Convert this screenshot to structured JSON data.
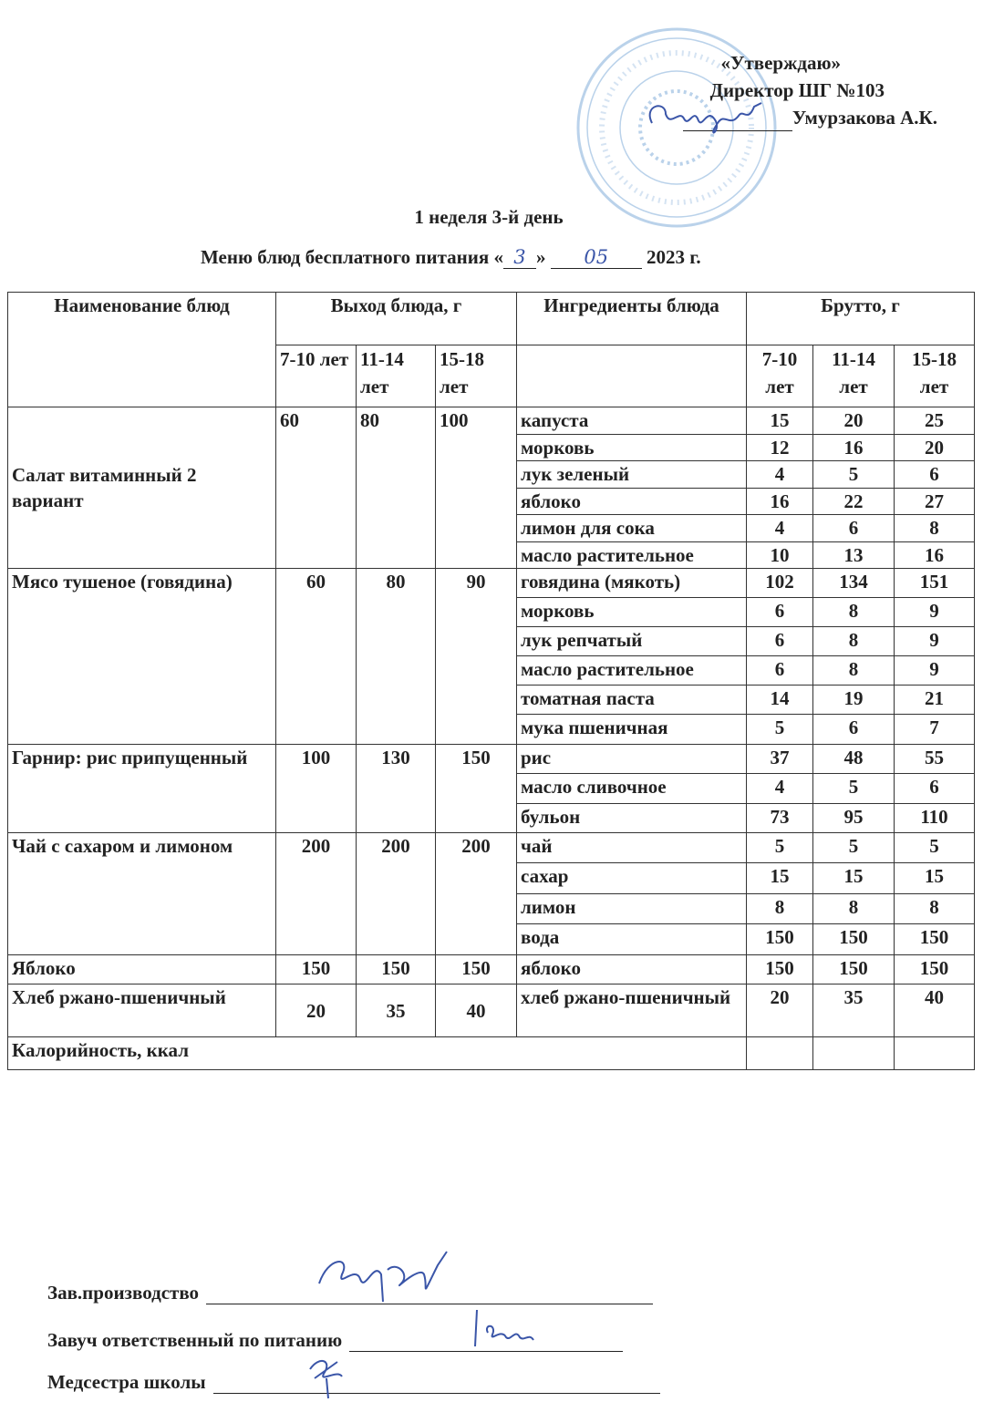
{
  "approval": {
    "line1": "«Утверждаю»",
    "line2": "Директор ШГ №103",
    "name": "Умурзакова А.К.",
    "stamp_text": "№103 мектеп-гимназия, Алматы қаласы, мемлекеттік мекеме"
  },
  "title": {
    "week_day": "1 неделя 3-й день",
    "menu_prefix": "Меню блюд бесплатного питания «",
    "day": "3",
    "mid": "»",
    "month": "05",
    "year": "2023 г."
  },
  "table": {
    "headers": {
      "dish": "Наименование блюд",
      "output": "Выход блюда, г",
      "ingredients": "Ингредиенты блюда",
      "gross": "Брутто, г",
      "ages": [
        "7-10 лет",
        "11-14 лет",
        "15-18 лет"
      ]
    },
    "dishes": [
      {
        "name": "Салат витаминный 2 вариант",
        "output": [
          "60",
          "80",
          "100"
        ],
        "ingredients": [
          {
            "name": "капуста",
            "gross": [
              "15",
              "20",
              "25"
            ]
          },
          {
            "name": "морковь",
            "gross": [
              "12",
              "16",
              "20"
            ]
          },
          {
            "name": "лук зеленый",
            "gross": [
              "4",
              "5",
              "6"
            ]
          },
          {
            "name": "яблоко",
            "gross": [
              "16",
              "22",
              "27"
            ]
          },
          {
            "name": "лимон для сока",
            "gross": [
              "4",
              "6",
              "8"
            ]
          },
          {
            "name": "масло растительное",
            "gross": [
              "10",
              "13",
              "16"
            ]
          }
        ]
      },
      {
        "name": "Мясо тушеное (говядина)",
        "output": [
          "60",
          "80",
          "90"
        ],
        "ingredients": [
          {
            "name": "говядина (мякоть)",
            "gross": [
              "102",
              "134",
              "151"
            ]
          },
          {
            "name": "морковь",
            "gross": [
              "6",
              "8",
              "9"
            ]
          },
          {
            "name": "лук репчатый",
            "gross": [
              "6",
              "8",
              "9"
            ]
          },
          {
            "name": "масло растительное",
            "gross": [
              "6",
              "8",
              "9"
            ]
          },
          {
            "name": "томатная паста",
            "gross": [
              "14",
              "19",
              "21"
            ]
          },
          {
            "name": "мука пшеничная",
            "gross": [
              "5",
              "6",
              "7"
            ]
          }
        ]
      },
      {
        "name": "Гарнир: рис припущенный",
        "output": [
          "100",
          "130",
          "150"
        ],
        "ingredients": [
          {
            "name": "рис",
            "gross": [
              "37",
              "48",
              "55"
            ]
          },
          {
            "name": "масло сливочное",
            "gross": [
              "4",
              "5",
              "6"
            ]
          },
          {
            "name": "бульон",
            "gross": [
              "73",
              "95",
              "110"
            ]
          }
        ]
      },
      {
        "name": "Чай с сахаром и лимоном",
        "output": [
          "200",
          "200",
          "200"
        ],
        "ingredients": [
          {
            "name": "чай",
            "gross": [
              "5",
              "5",
              "5"
            ]
          },
          {
            "name": "сахар",
            "gross": [
              "15",
              "15",
              "15"
            ]
          },
          {
            "name": "лимон",
            "gross": [
              "8",
              "8",
              "8"
            ]
          },
          {
            "name": "вода",
            "gross": [
              "150",
              "150",
              "150"
            ]
          }
        ]
      },
      {
        "name": "Яблоко",
        "output": [
          "150",
          "150",
          "150"
        ],
        "ingredients": [
          {
            "name": "яблоко",
            "gross": [
              "150",
              "150",
              "150"
            ]
          }
        ]
      },
      {
        "name": "Хлеб ржано-пшеничный",
        "output": [
          "20",
          "35",
          "40"
        ],
        "ingredients": [
          {
            "name": "хлеб ржано-пшеничный",
            "gross": [
              "20",
              "35",
              "40"
            ]
          }
        ]
      }
    ],
    "calories_label": "Калорийность, ккал"
  },
  "signatures": [
    {
      "label": "Зав.производство"
    },
    {
      "label": "Завуч ответственный по питанию"
    },
    {
      "label": "Медсестра школы"
    }
  ],
  "colors": {
    "ink": "#222222",
    "stamp": "#8fb6dd",
    "pen": "#3a55a8"
  }
}
